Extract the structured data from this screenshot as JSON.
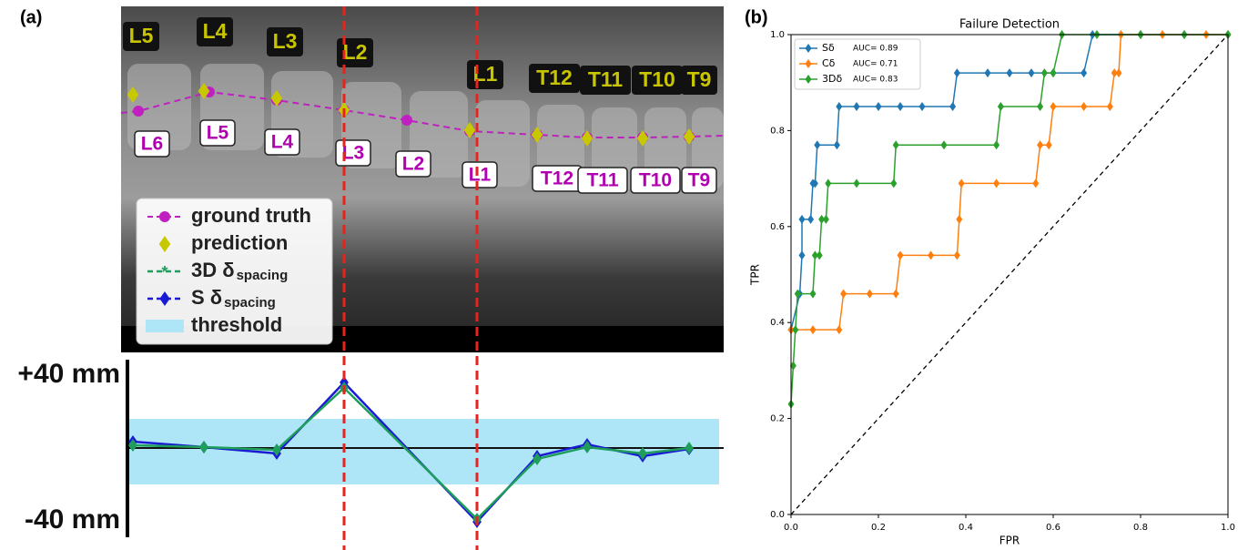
{
  "panel_labels": [
    "(a)",
    "(b)"
  ],
  "image": {
    "prediction_labels": [
      "L5",
      "L4",
      "L3",
      "L2",
      "L1",
      "T12",
      "T11",
      "T10",
      "T9"
    ],
    "ground_truth_labels": [
      "L6",
      "L5",
      "L4",
      "L3",
      "L2",
      "L1",
      "T12",
      "T11",
      "T10",
      "T9"
    ],
    "legend": [
      "ground truth",
      "prediction"
    ]
  },
  "chart_data": [
    {
      "type": "line",
      "series": [
        {
          "name": "3D δ",
          "name_subscript": "spacing",
          "color": "#1e9e5a",
          "values": [
            1.5,
            0.5,
            -1,
            33,
            -39,
            -6,
            0.5,
            -3,
            0
          ]
        },
        {
          "name": "S δ",
          "name_subscript": "spacing",
          "color": "#1a1ad6",
          "values": [
            3.5,
            0.5,
            -3,
            36,
            -40.5,
            -4.5,
            2,
            -4.5,
            -0.5
          ]
        }
      ],
      "threshold": {
        "name": "threshold",
        "color": "#aee6f8",
        "range": [
          -20,
          16
        ]
      },
      "ylim": [
        -49,
        48.5
      ],
      "yticks": [
        {
          "value": -40,
          "label": "-40 mm"
        },
        {
          "value": 40,
          "label": "+40 mm"
        }
      ]
    },
    {
      "type": "line",
      "title": "Failure Detection",
      "x_label": "FPR",
      "y_label": "TPR",
      "xlim": [
        0,
        1
      ],
      "ylim": [
        0,
        1
      ],
      "xticks": [
        {
          "value": 0,
          "label": "0.0"
        },
        0.2,
        0.4,
        0.6,
        0.8,
        {
          "value": 1,
          "label": "1.0"
        }
      ],
      "yticks": [
        {
          "value": 0,
          "label": "0.0"
        },
        0.2,
        0.4,
        0.6,
        0.8,
        {
          "value": 1,
          "label": "1.0"
        }
      ],
      "series": [
        {
          "name": "Sδ",
          "legend_note": "AUC= 0.89",
          "color": "#1f77b4",
          "x": [
            0,
            0.02,
            0.025,
            0.025,
            0.045,
            0.05,
            0.055,
            0.06,
            0.105,
            0.11,
            0.15,
            0.2,
            0.25,
            0.3,
            0.37,
            0.38,
            0.45,
            0.5,
            0.55,
            0.6,
            0.67,
            0.69,
            0.8,
            0.9,
            1.0
          ],
          "y": [
            0.385,
            0.46,
            0.54,
            0.615,
            0.615,
            0.69,
            0.69,
            0.77,
            0.77,
            0.85,
            0.85,
            0.85,
            0.85,
            0.85,
            0.85,
            0.92,
            0.92,
            0.92,
            0.92,
            0.92,
            0.92,
            1.0,
            1.0,
            1.0,
            1.0
          ]
        },
        {
          "name": "Cδ",
          "legend_note": "AUC= 0.71",
          "color": "#ff7f0e",
          "x": [
            0,
            0.05,
            0.11,
            0.12,
            0.18,
            0.24,
            0.25,
            0.32,
            0.38,
            0.385,
            0.39,
            0.47,
            0.56,
            0.57,
            0.59,
            0.6,
            0.67,
            0.73,
            0.74,
            0.75,
            0.755,
            0.85,
            0.95,
            1.0
          ],
          "y": [
            0.385,
            0.385,
            0.385,
            0.46,
            0.46,
            0.46,
            0.54,
            0.54,
            0.54,
            0.615,
            0.69,
            0.69,
            0.69,
            0.77,
            0.77,
            0.85,
            0.85,
            0.85,
            0.92,
            0.92,
            1.0,
            1.0,
            1.0,
            1.0
          ]
        },
        {
          "name": "3Dδ",
          "legend_note": "AUC= 0.83",
          "color": "#2ca02c",
          "x": [
            0,
            0.005,
            0.01,
            0.015,
            0.05,
            0.055,
            0.065,
            0.07,
            0.08,
            0.085,
            0.15,
            0.235,
            0.24,
            0.35,
            0.47,
            0.48,
            0.57,
            0.58,
            0.6,
            0.62,
            0.7,
            0.8,
            0.9,
            1.0
          ],
          "y": [
            0.23,
            0.31,
            0.385,
            0.46,
            0.46,
            0.54,
            0.54,
            0.615,
            0.615,
            0.69,
            0.69,
            0.69,
            0.77,
            0.77,
            0.77,
            0.85,
            0.85,
            0.92,
            0.92,
            1.0,
            1.0,
            1.0,
            1.0,
            1.0
          ]
        }
      ]
    }
  ]
}
